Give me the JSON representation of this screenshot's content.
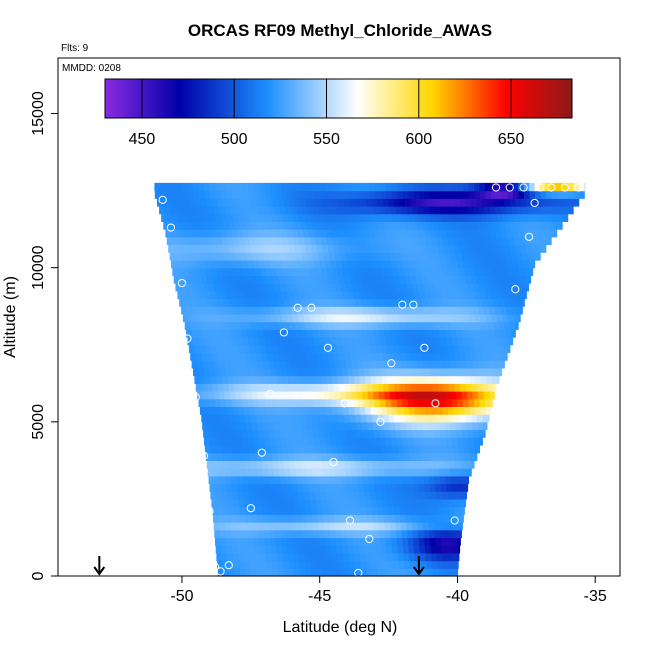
{
  "chart_data": {
    "type": "heatmap",
    "title": "ORCAS RF09 Methyl_Chloride_AWAS",
    "flights_label": "Flts: 9",
    "date_label": "MMDD: 0208",
    "xlabel": "Latitude (deg N)",
    "ylabel": "Altitude (m)",
    "xlim": [
      -54.5,
      -34.1
    ],
    "ylim": [
      0,
      16800
    ],
    "x_ticks": [
      -50,
      -45,
      -40,
      -35
    ],
    "x_tick_labels": [
      "-50",
      "-45",
      "-40",
      "-35"
    ],
    "y_ticks": [
      0,
      5000,
      10000,
      15000
    ],
    "y_tick_labels": [
      "0",
      "5000",
      "10000",
      "15000"
    ],
    "colorbar": {
      "range": [
        430,
        683
      ],
      "ticks": [
        450,
        500,
        550,
        600,
        650
      ],
      "tick_labels": [
        "450",
        "500",
        "550",
        "600",
        "650"
      ],
      "colors": [
        "#8a2be2",
        "#0000a8",
        "#1e90ff",
        "#ffffff",
        "#ffd700",
        "#ff0000",
        "#8b1a1a"
      ]
    },
    "coverage": {
      "top_altitude": 12300,
      "left_edge": [
        [
          -51.0,
          12300
        ],
        [
          -50.6,
          11000
        ],
        [
          -50.3,
          9500
        ],
        [
          -49.9,
          8000
        ],
        [
          -49.6,
          6500
        ],
        [
          -49.3,
          5000
        ],
        [
          -49.1,
          3500
        ],
        [
          -48.9,
          2000
        ],
        [
          -48.7,
          0
        ]
      ],
      "right_edge": [
        [
          -35.2,
          12500
        ],
        [
          -37.2,
          10000
        ],
        [
          -37.8,
          8000
        ],
        [
          -38.6,
          6000
        ],
        [
          -39.0,
          4500
        ],
        [
          -39.6,
          3000
        ],
        [
          -39.9,
          1000
        ],
        [
          -40.0,
          0
        ]
      ],
      "base_value": 520
    },
    "features": [
      {
        "type": "plume",
        "lat": -40.8,
        "alt": 5600,
        "value": 640,
        "spread_lat": 2.6,
        "spread_alt": 700
      },
      {
        "type": "band",
        "lat": -44.2,
        "alt": 5800,
        "value": 570,
        "spread_lat": 5.0,
        "spread_alt": 350
      },
      {
        "type": "band",
        "lat": -43.5,
        "alt": 8300,
        "value": 560,
        "spread_lat": 4.0,
        "spread_alt": 300
      },
      {
        "type": "band",
        "lat": -45.5,
        "alt": 3400,
        "value": 555,
        "spread_lat": 5.0,
        "spread_alt": 300
      },
      {
        "type": "band",
        "lat": -44.5,
        "alt": 1500,
        "value": 550,
        "spread_lat": 4.5,
        "spread_alt": 250
      },
      {
        "type": "band",
        "lat": -47.5,
        "alt": 10500,
        "value": 545,
        "spread_lat": 3.5,
        "spread_alt": 500
      },
      {
        "type": "low",
        "lat": -40.5,
        "alt": 12000,
        "value": 455,
        "spread_lat": 3.5,
        "spread_alt": 400
      },
      {
        "type": "low",
        "lat": -40.4,
        "alt": 900,
        "value": 465,
        "spread_lat": 1.4,
        "spread_alt": 500
      },
      {
        "type": "low",
        "lat": -40.0,
        "alt": 2800,
        "value": 480,
        "spread_lat": 1.2,
        "spread_alt": 400
      },
      {
        "type": "low",
        "lat": -38.4,
        "alt": 12400,
        "value": 445,
        "spread_lat": 1.0,
        "spread_alt": 250
      },
      {
        "type": "high",
        "lat": -36.5,
        "alt": 12500,
        "value": 620,
        "spread_lat": 1.2,
        "spread_alt": 200
      }
    ],
    "samples": [
      [
        -50.7,
        12200
      ],
      [
        -50.4,
        11300
      ],
      [
        -50.0,
        9500
      ],
      [
        -49.8,
        7700
      ],
      [
        -49.5,
        5800
      ],
      [
        -49.2,
        3900
      ],
      [
        -49.0,
        2100
      ],
      [
        -48.8,
        300
      ],
      [
        -48.6,
        150
      ],
      [
        -48.3,
        350
      ],
      [
        -47.5,
        2200
      ],
      [
        -47.1,
        4000
      ],
      [
        -46.8,
        5900
      ],
      [
        -46.3,
        7900
      ],
      [
        -45.8,
        8700
      ],
      [
        -45.3,
        8700
      ],
      [
        -44.7,
        7400
      ],
      [
        -44.5,
        3700
      ],
      [
        -44.1,
        5600
      ],
      [
        -43.9,
        1800
      ],
      [
        -43.6,
        100
      ],
      [
        -43.2,
        1200
      ],
      [
        -42.8,
        5000
      ],
      [
        -42.4,
        6900
      ],
      [
        -42.0,
        8800
      ],
      [
        -41.6,
        8800
      ],
      [
        -41.2,
        7400
      ],
      [
        -40.8,
        5600
      ],
      [
        -40.1,
        1800
      ],
      [
        -39.6,
        100
      ],
      [
        -38.6,
        2900
      ],
      [
        -37.9,
        9300
      ],
      [
        -37.4,
        11000
      ],
      [
        -37.2,
        12100
      ],
      [
        -38.6,
        12600
      ],
      [
        -38.1,
        12600
      ],
      [
        -37.6,
        12600
      ],
      [
        -37.0,
        12600
      ],
      [
        -36.6,
        12600
      ],
      [
        -36.1,
        12600
      ],
      [
        -35.6,
        12600
      ]
    ],
    "arrows_lat": [
      -53.0,
      -41.4
    ]
  }
}
